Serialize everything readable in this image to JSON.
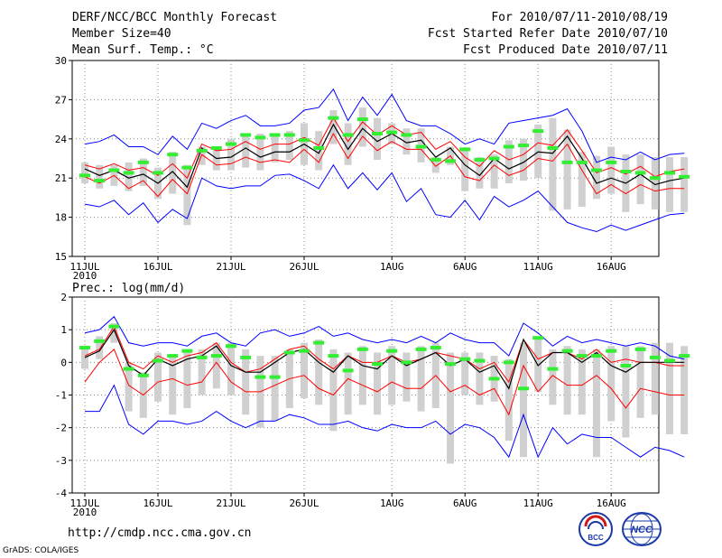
{
  "header": {
    "title": "DERF/NCC/BCC Monthly Forecast",
    "member_size": "Member Size=40",
    "variable": "Mean Surf. Temp.: °C",
    "period": "For 2010/07/11-2010/08/19",
    "refer_date": "Fcst Started Refer Date 2010/07/10",
    "produced_date": "Fcst Produced Date 2010/07/11"
  },
  "footer": {
    "url": "http://cmdp.ncc.cma.gov.cn",
    "credit": "GrADS: COLA/IGES"
  },
  "logos": {
    "bcc": "BCC",
    "ncc": "NCC"
  },
  "colors": {
    "max_min": "#0000ff",
    "spread": "#ff0000",
    "mean": "#000000",
    "median": "#33ee33",
    "box": "#d0d0d0"
  },
  "chart_data": [
    {
      "type": "line",
      "title": "Mean Surf. Temp.: °C",
      "ylim": [
        15,
        30
      ],
      "yticks": [
        "15",
        "18",
        "21",
        "24",
        "27",
        "30"
      ],
      "xticks": [
        "11JUL",
        "16JUL",
        "21JUL",
        "26JUL",
        "1AUG",
        "6AUG",
        "11AUG",
        "16AUG"
      ],
      "xtick_days": [
        0,
        5,
        10,
        15,
        21,
        26,
        31,
        36
      ],
      "year_label": "2010",
      "series": [
        {
          "name": "max",
          "values": [
            23.6,
            23.8,
            24.3,
            23.4,
            23.4,
            22.8,
            24.2,
            23.2,
            25.2,
            24.8,
            25.4,
            25.8,
            25.0,
            25.0,
            25.2,
            26.2,
            26.4,
            27.8,
            25.4,
            27.2,
            25.8,
            27.4,
            25.4,
            25.0,
            25.0,
            24.4,
            23.6,
            24.0,
            23.6,
            25.2,
            25.4,
            25.6,
            25.8,
            26.3,
            24.6,
            22.2,
            22.6,
            22.4,
            23.0,
            22.4,
            22.8,
            22.9
          ]
        },
        {
          "name": "spread_upper",
          "values": [
            22.0,
            21.7,
            22.1,
            21.6,
            21.8,
            21.2,
            22.1,
            21.0,
            23.6,
            23.1,
            23.2,
            23.8,
            23.2,
            23.6,
            23.6,
            24.1,
            23.5,
            25.6,
            23.8,
            25.3,
            24.3,
            25.0,
            24.3,
            24.5,
            23.2,
            23.8,
            22.6,
            21.9,
            23.1,
            22.4,
            22.8,
            23.7,
            23.5,
            24.7,
            23.1,
            21.4,
            21.8,
            21.3,
            21.9,
            21.1,
            21.5,
            21.7
          ]
        },
        {
          "name": "mean",
          "values": [
            21.7,
            21.2,
            21.6,
            21.0,
            21.3,
            20.6,
            21.5,
            20.3,
            23.3,
            22.5,
            22.6,
            23.3,
            22.6,
            23.0,
            23.0,
            23.6,
            22.9,
            25.1,
            23.2,
            24.8,
            23.8,
            24.4,
            23.7,
            23.9,
            22.6,
            23.3,
            22.0,
            21.2,
            22.5,
            21.7,
            22.2,
            23.0,
            22.9,
            24.2,
            22.5,
            20.6,
            21.0,
            20.6,
            21.3,
            20.5,
            20.8,
            21.0
          ]
        },
        {
          "name": "spread_lower",
          "values": [
            21.1,
            20.6,
            21.2,
            20.2,
            20.8,
            19.6,
            20.9,
            19.8,
            22.8,
            22.0,
            22.1,
            22.6,
            22.2,
            22.4,
            22.2,
            23.2,
            22.2,
            24.4,
            22.5,
            24.2,
            23.1,
            23.8,
            23.2,
            23.2,
            21.9,
            22.7,
            21.1,
            20.8,
            22.0,
            21.2,
            21.6,
            22.5,
            22.3,
            23.6,
            21.6,
            19.8,
            20.5,
            19.8,
            20.5,
            20.0,
            20.2,
            20.2
          ]
        },
        {
          "name": "min",
          "values": [
            19.0,
            18.8,
            19.3,
            18.2,
            19.1,
            17.6,
            18.6,
            17.9,
            21.0,
            20.4,
            20.2,
            20.4,
            20.4,
            21.2,
            21.3,
            20.8,
            20.2,
            22.0,
            20.2,
            21.4,
            20.1,
            21.4,
            19.2,
            20.2,
            18.2,
            18.0,
            19.3,
            17.8,
            19.6,
            18.8,
            19.3,
            20.0,
            18.8,
            17.6,
            17.2,
            16.9,
            17.4,
            17.0,
            17.4,
            17.8,
            18.2,
            18.3
          ]
        },
        {
          "name": "median",
          "values": [
            21.2,
            20.8,
            21.6,
            21.4,
            22.2,
            21.4,
            22.8,
            21.8,
            23.1,
            23.3,
            23.6,
            24.3,
            24.1,
            24.3,
            24.3,
            23.9,
            23.3,
            25.6,
            24.3,
            25.5,
            24.4,
            24.5,
            24.3,
            23.4,
            22.4,
            22.3,
            23.2,
            22.4,
            22.5,
            23.4,
            23.5,
            24.6,
            23.3,
            22.2,
            22.2,
            21.6,
            22.2,
            21.5,
            21.4,
            21.0,
            21.4,
            21.1
          ]
        },
        {
          "name": "box_top",
          "values": [
            22.2,
            22.0,
            22.0,
            22.2,
            22.5,
            21.8,
            23.0,
            22.0,
            23.4,
            23.4,
            24.0,
            24.4,
            24.4,
            24.2,
            24.6,
            25.2,
            24.6,
            26.2,
            25.2,
            26.4,
            25.6,
            25.2,
            24.8,
            24.8,
            22.6,
            23.4,
            23.3,
            22.6,
            22.8,
            23.9,
            24.0,
            25.1,
            25.6,
            24.7,
            23.0,
            22.7,
            23.4,
            22.8,
            22.8,
            22.6,
            22.6,
            22.6
          ]
        },
        {
          "name": "box_bottom",
          "values": [
            20.6,
            20.2,
            20.4,
            20.0,
            20.4,
            19.4,
            19.8,
            17.4,
            22.0,
            21.6,
            21.6,
            21.8,
            21.6,
            22.2,
            22.4,
            22.0,
            21.6,
            23.6,
            22.0,
            23.4,
            22.4,
            23.6,
            22.8,
            22.2,
            21.4,
            22.0,
            20.0,
            20.2,
            20.2,
            20.6,
            20.8,
            21.0,
            18.5,
            18.6,
            18.8,
            19.4,
            19.8,
            18.4,
            19.0,
            18.6,
            18.4,
            18.4
          ]
        }
      ]
    },
    {
      "type": "line",
      "title": "Prec.: log(mm/d)",
      "ylim": [
        -4,
        2
      ],
      "yticks": [
        "-4",
        "-3",
        "-2",
        "-1",
        "0",
        "1",
        "2"
      ],
      "xticks": [
        "11JUL",
        "16JUL",
        "21JUL",
        "26JUL",
        "1AUG",
        "6AUG",
        "11AUG",
        "16AUG"
      ],
      "xtick_days": [
        0,
        5,
        10,
        15,
        21,
        26,
        31,
        36
      ],
      "year_label": "2010",
      "series": [
        {
          "name": "max",
          "values": [
            0.9,
            1.0,
            1.4,
            0.6,
            0.5,
            0.6,
            0.6,
            0.5,
            0.8,
            0.9,
            0.6,
            0.5,
            0.9,
            1.0,
            0.8,
            0.9,
            1.1,
            0.8,
            0.9,
            0.7,
            0.6,
            0.7,
            0.6,
            0.8,
            0.6,
            0.9,
            0.7,
            0.6,
            0.6,
            0.2,
            1.2,
            0.9,
            0.5,
            0.8,
            0.6,
            0.7,
            0.6,
            0.5,
            0.6,
            0.5,
            0.2,
            0.1
          ]
        },
        {
          "name": "spread_upper",
          "values": [
            0.2,
            0.4,
            1.1,
            0.0,
            -0.2,
            0.2,
            0.0,
            0.2,
            0.3,
            0.6,
            0.0,
            -0.3,
            -0.2,
            0.1,
            0.4,
            0.5,
            0.1,
            -0.2,
            0.2,
            0.0,
            0.0,
            0.2,
            0.0,
            0.1,
            0.3,
            0.2,
            0.1,
            -0.2,
            0.0,
            -0.6,
            0.7,
            0.1,
            0.3,
            0.3,
            0.1,
            0.4,
            0.0,
            0.1,
            0.0,
            0.0,
            -0.1,
            -0.1
          ]
        },
        {
          "name": "mean",
          "values": [
            0.15,
            0.35,
            1.0,
            -0.1,
            -0.4,
            0.1,
            -0.1,
            0.1,
            0.2,
            0.5,
            -0.1,
            -0.3,
            -0.3,
            0.0,
            0.3,
            0.4,
            0.0,
            -0.3,
            0.2,
            -0.1,
            -0.2,
            0.2,
            -0.1,
            0.1,
            0.3,
            -0.1,
            0.1,
            -0.3,
            -0.1,
            -0.8,
            0.7,
            -0.1,
            0.3,
            0.3,
            0.0,
            0.3,
            -0.1,
            -0.3,
            0.0,
            0.0,
            0.0,
            0.0
          ]
        },
        {
          "name": "spread_lower",
          "values": [
            -0.6,
            0.0,
            0.4,
            -0.7,
            -1.0,
            -0.6,
            -0.5,
            -0.7,
            -0.6,
            0.0,
            -0.6,
            -0.9,
            -0.9,
            -0.7,
            -0.5,
            -0.4,
            -0.8,
            -1.0,
            -0.5,
            -0.7,
            -0.9,
            -0.6,
            -0.8,
            -0.8,
            -0.4,
            -0.9,
            -0.7,
            -1.0,
            -0.8,
            -1.6,
            -0.1,
            -0.9,
            -0.4,
            -0.7,
            -0.7,
            -0.4,
            -0.8,
            -1.4,
            -0.8,
            -0.9,
            -1.0,
            -1.0
          ]
        },
        {
          "name": "min",
          "values": [
            -1.5,
            -1.5,
            -0.7,
            -1.9,
            -2.2,
            -1.8,
            -1.8,
            -1.9,
            -1.8,
            -1.5,
            -1.8,
            -2.0,
            -1.8,
            -1.8,
            -1.6,
            -1.7,
            -1.9,
            -1.9,
            -1.8,
            -2.0,
            -2.1,
            -1.9,
            -2.0,
            -2.0,
            -1.8,
            -2.2,
            -1.9,
            -2.0,
            -2.3,
            -2.9,
            -1.6,
            -2.9,
            -2.0,
            -2.5,
            -2.2,
            -2.3,
            -2.3,
            -2.6,
            -2.9,
            -2.6,
            -2.7,
            -2.9
          ]
        },
        {
          "name": "median",
          "values": [
            0.45,
            0.65,
            1.1,
            -0.2,
            -0.4,
            0.05,
            0.2,
            0.35,
            0.15,
            0.2,
            0.5,
            0.15,
            -0.45,
            -0.45,
            0.3,
            0.35,
            0.6,
            0.2,
            -0.25,
            0.4,
            -0.05,
            0.35,
            0.0,
            0.4,
            0.45,
            -0.05,
            0.1,
            0.05,
            -0.5,
            0.0,
            -0.8,
            0.75,
            -0.2,
            0.35,
            0.2,
            0.2,
            0.35,
            -0.1,
            0.4,
            0.15,
            0.05,
            0.2
          ]
        },
        {
          "name": "box_top",
          "values": [
            0.5,
            0.8,
            1.2,
            0.0,
            -0.3,
            0.3,
            0.2,
            0.4,
            0.4,
            0.6,
            0.6,
            0.4,
            0.2,
            0.2,
            0.4,
            0.6,
            0.7,
            0.4,
            0.3,
            0.5,
            0.3,
            0.5,
            0.3,
            0.5,
            0.6,
            0.3,
            0.3,
            0.3,
            0.2,
            0.1,
            0.6,
            0.8,
            0.4,
            0.5,
            0.4,
            0.4,
            0.5,
            0.5,
            0.5,
            0.6,
            0.6,
            0.5
          ]
        },
        {
          "name": "box_bottom",
          "values": [
            -0.2,
            0.1,
            0.6,
            -1.5,
            -1.7,
            -1.2,
            -1.6,
            -1.4,
            -1.0,
            -0.8,
            -1.0,
            -1.6,
            -2.0,
            -1.8,
            -1.4,
            -1.1,
            -1.3,
            -2.1,
            -1.6,
            -1.3,
            -1.6,
            -1.3,
            -1.2,
            -1.5,
            -1.4,
            -3.1,
            -1.0,
            -1.3,
            -1.2,
            -2.4,
            -2.9,
            -0.9,
            -1.3,
            -1.6,
            -1.6,
            -2.9,
            -1.8,
            -2.3,
            -1.7,
            -1.6,
            -2.2,
            -2.2
          ]
        }
      ]
    }
  ]
}
